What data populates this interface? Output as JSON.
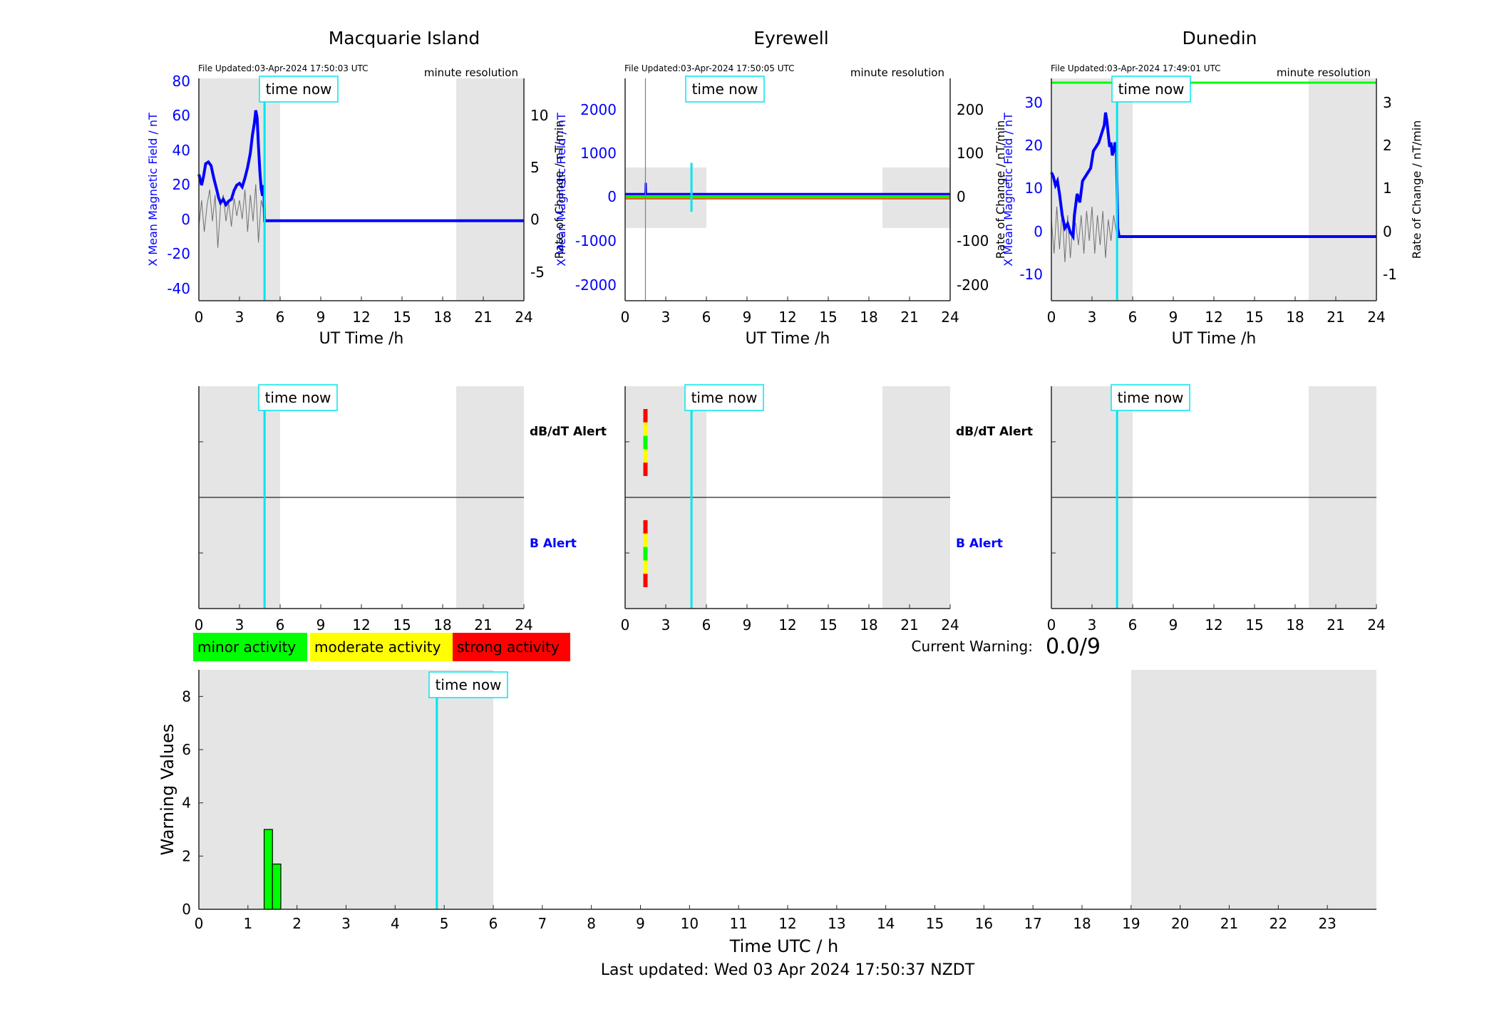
{
  "stations": [
    {
      "title": "Macquarie Island",
      "file_updated": "File Updated:03-Apr-2024 17:50:03 UTC",
      "resolution": "minute resolution",
      "time_now": "time now",
      "xlabel": "UT Time /h",
      "ylabel_left": "X Mean Magnetic Field / nT",
      "ylabel_right": "Rate of Change / nT/min",
      "yticks_left": [
        "80",
        "60",
        "40",
        "20",
        "0",
        "-20",
        "-40"
      ],
      "yticks_right": [
        "10",
        "5",
        "0",
        "-5"
      ]
    },
    {
      "title": "Eyrewell",
      "file_updated": "File Updated:03-Apr-2024 17:50:05 UTC",
      "resolution": "minute resolution",
      "time_now": "time now",
      "xlabel": "UT Time /h",
      "ylabel_left": "X Mean Magnetic Field / nT",
      "ylabel_right": "Rate of Change / nT/min",
      "yticks_left": [
        "2000",
        "1000",
        "0",
        "-1000",
        "-2000"
      ],
      "yticks_right": [
        "200",
        "100",
        "0",
        "-100",
        "-200"
      ]
    },
    {
      "title": "Dunedin",
      "file_updated": "File Updated:03-Apr-2024 17:49:01 UTC",
      "resolution": "minute resolution",
      "time_now": "time now",
      "xlabel": "UT Time /h",
      "ylabel_left": "X Mean Magnetic Field / nT",
      "ylabel_right": "Rate of Change / nT/min",
      "yticks_left": [
        "30",
        "20",
        "10",
        "0",
        "-10"
      ],
      "yticks_right": [
        "3",
        "2",
        "1",
        "0",
        "-1"
      ]
    }
  ],
  "hour_ticks": [
    "0",
    "3",
    "6",
    "9",
    "12",
    "15",
    "18",
    "21",
    "24"
  ],
  "alerts": {
    "dbdt_label": "dB/dT Alert",
    "b_label": "B Alert",
    "time_now": "time now"
  },
  "legend": [
    {
      "label": "minor activity",
      "color": "#00ff00"
    },
    {
      "label": "moderate activity",
      "color": "#ffff00"
    },
    {
      "label": "strong activity",
      "color": "#ff0000"
    }
  ],
  "current_warning": {
    "label": "Current Warning:",
    "value": "0.0/9"
  },
  "warning_chart": {
    "time_now": "time now",
    "ylabel": "Warning Values",
    "xlabel": "Time UTC / h",
    "yticks": [
      "0",
      "2",
      "4",
      "6",
      "8"
    ],
    "xticks": [
      "0",
      "1",
      "2",
      "3",
      "4",
      "5",
      "6",
      "7",
      "8",
      "9",
      "10",
      "11",
      "12",
      "13",
      "14",
      "15",
      "16",
      "17",
      "18",
      "19",
      "20",
      "21",
      "22",
      "23"
    ]
  },
  "footer": "Last updated: Wed 03 Apr 2024 17:50:37 NZDT",
  "colors": {
    "field": "#0000ff",
    "rate": "#808080",
    "time_now": "#00e5ee",
    "night_shade": "#e5e5e5",
    "threshold": "#00ff00"
  },
  "chart_data": [
    {
      "type": "line",
      "station": "Macquarie Island",
      "xlim": [
        0,
        24
      ],
      "ylim": [
        -45,
        80
      ],
      "ylim_right": [
        -8.5,
        12.5
      ],
      "time_now_h": 4.85,
      "night_shading_h": [
        [
          0,
          6
        ],
        [
          19,
          24
        ]
      ],
      "series": [
        {
          "axis": "left",
          "x": [
            0,
            0.2,
            0.35,
            0.5,
            0.7,
            0.9,
            1.1,
            1.3,
            1.45,
            1.6,
            1.8,
            2.0,
            2.2,
            2.4,
            2.6,
            2.8,
            3.0,
            3.2,
            3.4,
            3.6,
            3.8,
            3.95,
            4.1,
            4.2,
            4.3,
            4.4,
            4.5,
            4.6,
            4.7,
            4.8,
            4.85,
            5.0,
            8,
            12,
            16,
            20,
            24
          ],
          "y": [
            26,
            20,
            25,
            32,
            33,
            31,
            24,
            18,
            13,
            10,
            12,
            9,
            11,
            12,
            17,
            20,
            21,
            19,
            24,
            30,
            38,
            48,
            55,
            62,
            58,
            42,
            28,
            18,
            14,
            20,
            0,
            0,
            0,
            0,
            0,
            0,
            0
          ]
        },
        {
          "axis": "right",
          "x": [
            0,
            0.2,
            0.4,
            0.6,
            0.8,
            1.0,
            1.2,
            1.4,
            1.6,
            1.8,
            2.0,
            2.2,
            2.4,
            2.6,
            2.8,
            3.0,
            3.2,
            3.4,
            3.6,
            3.8,
            4.0,
            4.2,
            4.4,
            4.6,
            4.8
          ],
          "y": [
            -1.5,
            1,
            -2,
            0.5,
            2,
            -1,
            1.5,
            -3.5,
            0.5,
            1.5,
            -1,
            0.8,
            -1.5,
            1.2,
            -0.5,
            1,
            -0.8,
            2,
            -2,
            1.5,
            -1,
            2.5,
            -3,
            1,
            0
          ]
        }
      ]
    },
    {
      "type": "line",
      "station": "Eyrewell",
      "xlim": [
        0,
        24
      ],
      "ylim": [
        -2400,
        2600
      ],
      "ylim_right": [
        -240,
        260
      ],
      "time_now_h": 4.9,
      "night_shading_h": [
        [
          0,
          6
        ],
        [
          19,
          24
        ]
      ],
      "night_shading_y": [
        -700,
        700
      ],
      "series": [
        {
          "axis": "left",
          "x": [
            0,
            1.5,
            1.52,
            1.54,
            1.56,
            24
          ],
          "y": [
            0,
            0,
            250,
            0,
            0,
            0
          ]
        },
        {
          "axis": "right",
          "x": [
            1.5,
            1.5
          ],
          "y": [
            -240,
            260
          ]
        }
      ]
    },
    {
      "type": "line",
      "station": "Dunedin",
      "xlim": [
        0,
        24
      ],
      "ylim": [
        -15,
        37
      ],
      "ylim_right": [
        -1.6,
        3.6
      ],
      "time_now_h": 4.85,
      "night_shading_h": [
        [
          0,
          6
        ],
        [
          19,
          24
        ]
      ],
      "threshold_right": 3.5,
      "series": [
        {
          "axis": "left",
          "x": [
            0,
            0.15,
            0.3,
            0.45,
            0.6,
            0.8,
            1.0,
            1.2,
            1.4,
            1.6,
            1.7,
            1.9,
            2.1,
            2.3,
            2.5,
            2.7,
            2.9,
            3.1,
            3.3,
            3.5,
            3.7,
            3.9,
            4.0,
            4.1,
            4.2,
            4.3,
            4.4,
            4.5,
            4.6,
            4.7,
            4.8,
            4.9,
            5.0,
            8,
            12,
            16,
            20,
            24
          ],
          "y": [
            15,
            14,
            12,
            13,
            10,
            5,
            2,
            3,
            1,
            0,
            5,
            10,
            8,
            13,
            14,
            15,
            16,
            20,
            21,
            22,
            24,
            26,
            29,
            27,
            24,
            21,
            22,
            19,
            20,
            22,
            21,
            2,
            0,
            0,
            0,
            0,
            0,
            0
          ]
        },
        {
          "axis": "right",
          "x": [
            0,
            0.2,
            0.4,
            0.6,
            0.8,
            1.0,
            1.2,
            1.4,
            1.6,
            1.8,
            2.0,
            2.2,
            2.4,
            2.6,
            2.8,
            3.0,
            3.2,
            3.4,
            3.6,
            3.8,
            4.0,
            4.2,
            4.4,
            4.6,
            4.8
          ],
          "y": [
            0.3,
            -0.5,
            0.6,
            -0.4,
            0.5,
            -0.7,
            0.4,
            -0.6,
            0.3,
            0.2,
            -0.3,
            0.4,
            -0.5,
            0.5,
            -0.2,
            0.6,
            -0.5,
            0.4,
            -0.3,
            0.5,
            -0.6,
            0.3,
            -0.2,
            0.4,
            0
          ]
        }
      ]
    },
    {
      "type": "bar",
      "station": "Eyrewell",
      "panel": "alerts",
      "alerts": [
        {
          "name": "dB/dT Alert",
          "x_h": 1.5,
          "levels": [
            "strong",
            "moderate",
            "minor",
            "moderate",
            "strong"
          ]
        },
        {
          "name": "B Alert",
          "x_h": 1.5,
          "levels": [
            "strong",
            "moderate",
            "minor",
            "moderate",
            "strong"
          ]
        }
      ],
      "time_now_h": 4.9
    },
    {
      "type": "bar",
      "title": "Warning Values",
      "xlabel": "Time UTC / h",
      "ylabel": "Warning Values",
      "xlim": [
        0,
        24
      ],
      "ylim": [
        0,
        9
      ],
      "time_now_h": 4.85,
      "night_shading_h": [
        [
          0,
          6
        ],
        [
          19,
          24
        ]
      ],
      "bars": [
        {
          "x_start": 1.33,
          "x_end": 1.5,
          "value": 3.0,
          "level": "minor"
        },
        {
          "x_start": 1.5,
          "x_end": 1.67,
          "value": 1.7,
          "level": "minor"
        }
      ]
    }
  ]
}
